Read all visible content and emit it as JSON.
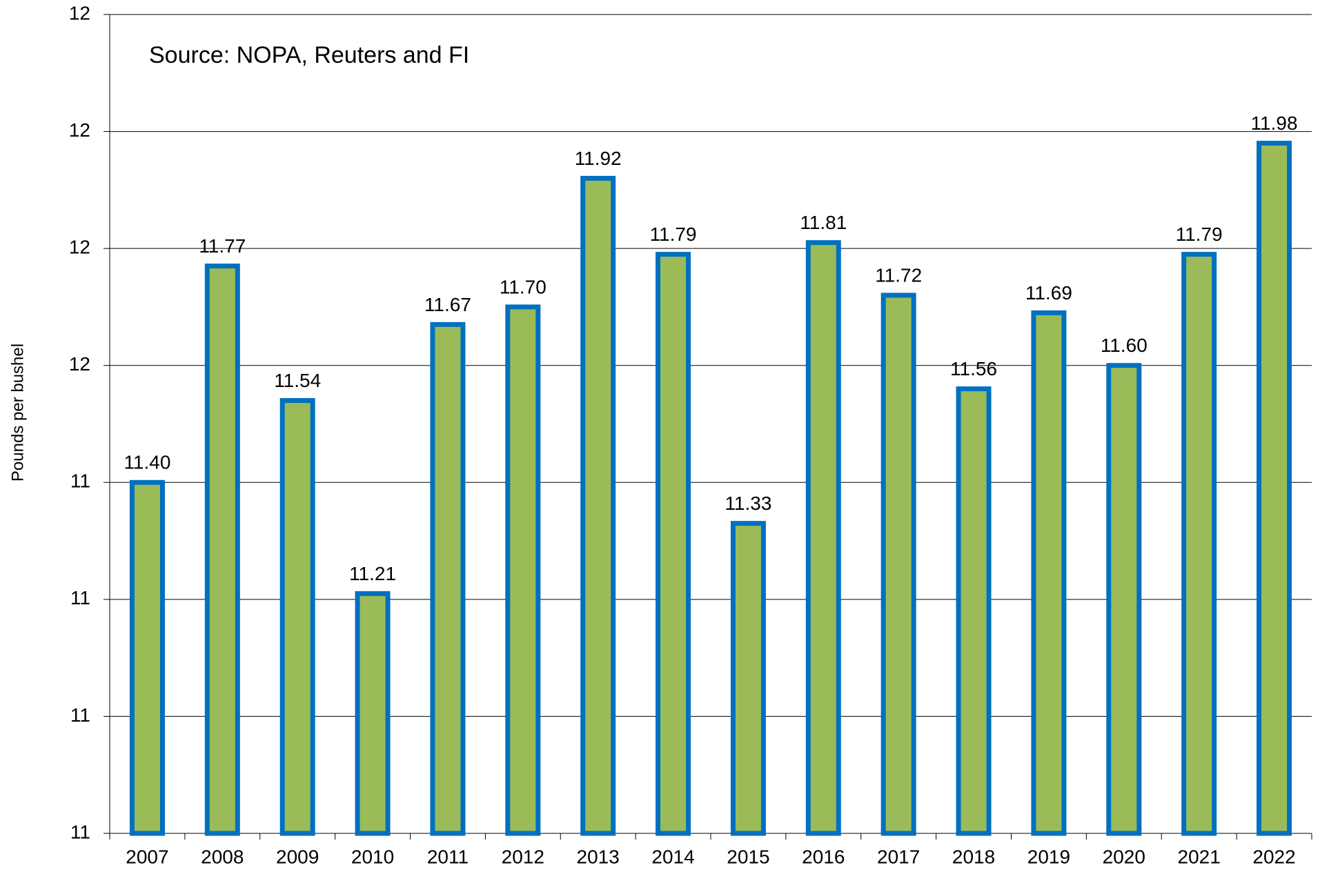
{
  "chart_data": {
    "type": "bar",
    "annotation": "Source: NOPA, Reuters and FI",
    "y_label": "Pounds per bushel",
    "categories": [
      "2007",
      "2008",
      "2009",
      "2010",
      "2011",
      "2012",
      "2013",
      "2014",
      "2015",
      "2016",
      "2017",
      "2018",
      "2019",
      "2020",
      "2021",
      "2022"
    ],
    "values": [
      11.4,
      11.77,
      11.54,
      11.21,
      11.67,
      11.7,
      11.92,
      11.79,
      11.33,
      11.81,
      11.72,
      11.56,
      11.69,
      11.6,
      11.79,
      11.98
    ],
    "value_labels": [
      "11.40",
      "11.77",
      "11.54",
      "11.21",
      "11.67",
      "11.70",
      "11.92",
      "11.79",
      "11.33",
      "11.81",
      "11.72",
      "11.56",
      "11.69",
      "11.60",
      "11.79",
      "11.98"
    ],
    "color": "#9bbb59",
    "edge_color": "#0070c0",
    "ylim": [
      10.8,
      12.2
    ],
    "yticks": [
      {
        "value": 10.8,
        "label": "11"
      },
      {
        "value": 11.0,
        "label": "11"
      },
      {
        "value": 11.2,
        "label": "11"
      },
      {
        "value": 11.4,
        "label": "11"
      },
      {
        "value": 11.6,
        "label": "12"
      },
      {
        "value": 11.8,
        "label": "12"
      },
      {
        "value": 12.0,
        "label": "12"
      },
      {
        "value": 12.2,
        "label": "12"
      }
    ],
    "grid": true
  }
}
